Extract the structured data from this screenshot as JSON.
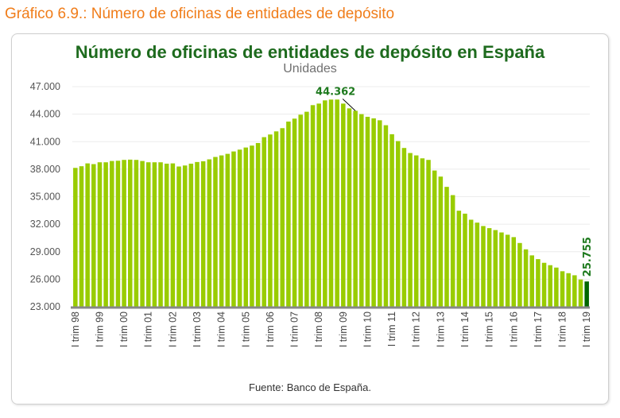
{
  "header": "Gráfico 6.9.:  Número de oficinas de entidades de depósito",
  "chart_data": {
    "type": "bar",
    "title": "Número de oficinas de entidades de depósito en España",
    "subtitle": "Unidades",
    "source": "Fuente: Banco de España.",
    "ylim": [
      23000,
      47000
    ],
    "yticks": [
      "23.000",
      "26.000",
      "29.000",
      "32.000",
      "35.000",
      "38.000",
      "41.000",
      "44.000",
      "47.000"
    ],
    "ytick_values": [
      23000,
      26000,
      29000,
      32000,
      35000,
      38000,
      41000,
      44000,
      47000
    ],
    "grid": true,
    "xtick_labels": [
      "I trim 98",
      "I trim 99",
      "I trim 00",
      "I trim 01",
      "I trim 02",
      "I trim 03",
      "I trim 04",
      "I trim 05",
      "I trim 06",
      "I trim 07",
      "I trim 08",
      "I trim 09",
      "I trim 10",
      "I trim 11",
      "I trim 12",
      "I trim 13",
      "I trim 14",
      "I trim 15",
      "I trim 16",
      "I trim 17",
      "I trim 18",
      "I trim 19"
    ],
    "values": [
      38140,
      38320,
      38630,
      38550,
      38750,
      38750,
      38890,
      38920,
      39010,
      39040,
      39010,
      38890,
      38750,
      38750,
      38750,
      38600,
      38630,
      38290,
      38400,
      38600,
      38780,
      38860,
      39070,
      39330,
      39500,
      39670,
      39930,
      40130,
      40360,
      40570,
      40850,
      41490,
      41780,
      42120,
      42470,
      43190,
      43510,
      43940,
      44260,
      44980,
      45150,
      45500,
      45590,
      45590,
      45150,
      44630,
      44362,
      44000,
      43710,
      43540,
      43330,
      42790,
      41810,
      41060,
      40310,
      39760,
      39500,
      39180,
      39010,
      37850,
      37190,
      36070,
      35170,
      33470,
      33150,
      32490,
      32170,
      31800,
      31570,
      31360,
      31100,
      30850,
      30590,
      29950,
      29260,
      28600,
      28190,
      27790,
      27530,
      27270,
      26870,
      26660,
      26430,
      25970,
      25755
    ],
    "annotations": [
      {
        "label": "44.362",
        "index": 46
      },
      {
        "label": "25.755",
        "index": 84
      }
    ],
    "colors": {
      "bar": "#99CC00",
      "last_bar": "#006600",
      "label": "#1E7A1E",
      "title": "#1E6B1E",
      "header": "#F07D1A"
    }
  }
}
